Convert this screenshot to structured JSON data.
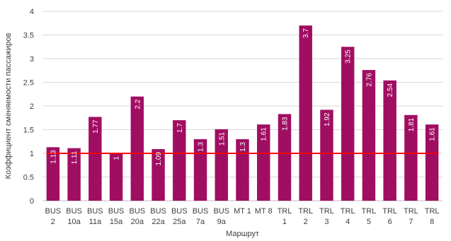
{
  "chart_data": {
    "type": "bar",
    "categories": [
      [
        "BUS",
        "2"
      ],
      [
        "BUS",
        "10a"
      ],
      [
        "BUS",
        "11a"
      ],
      [
        "BUS",
        "15a"
      ],
      [
        "BUS",
        "20a"
      ],
      [
        "BUS",
        "22a"
      ],
      [
        "BUS",
        "25a"
      ],
      [
        "BUS",
        "7a"
      ],
      [
        "BUS",
        "9a"
      ],
      [
        "MT 1"
      ],
      [
        "MT 8"
      ],
      [
        "TRL",
        "1"
      ],
      [
        "TRL",
        "2"
      ],
      [
        "TRL",
        "3"
      ],
      [
        "TRL",
        "4"
      ],
      [
        "TRL",
        "5"
      ],
      [
        "TRL",
        "6"
      ],
      [
        "TRL",
        "7"
      ],
      [
        "TRL",
        "8"
      ]
    ],
    "values": [
      1.13,
      1.11,
      1.77,
      1,
      2.2,
      1.09,
      1.7,
      1.3,
      1.51,
      1.3,
      1.61,
      1.83,
      3.7,
      1.92,
      3.25,
      2.76,
      2.54,
      1.81,
      1.61
    ],
    "data_labels": [
      "1.13",
      "1.11",
      "1.77",
      "1",
      "2.2",
      "1.09",
      "1.7",
      "1.3",
      "1.51",
      "1.3",
      "1.61",
      "1.83",
      "3.7",
      "1.92",
      "3.25",
      "2.76",
      "2.54",
      "1.81",
      "1.61"
    ],
    "yticks": [
      "0",
      "0.5",
      "1",
      "1.5",
      "2",
      "2.5",
      "3",
      "3.5",
      "4"
    ],
    "ylim": [
      0,
      4
    ],
    "reference_line": 1,
    "xlabel": "Маршрут",
    "ylabel": "Коэффициент сменяемости пассажиров",
    "grid": true,
    "legend": "none",
    "colors": {
      "bar": "#a00e62",
      "reference": "#ff0000",
      "grid": "#d9d9d9"
    }
  }
}
